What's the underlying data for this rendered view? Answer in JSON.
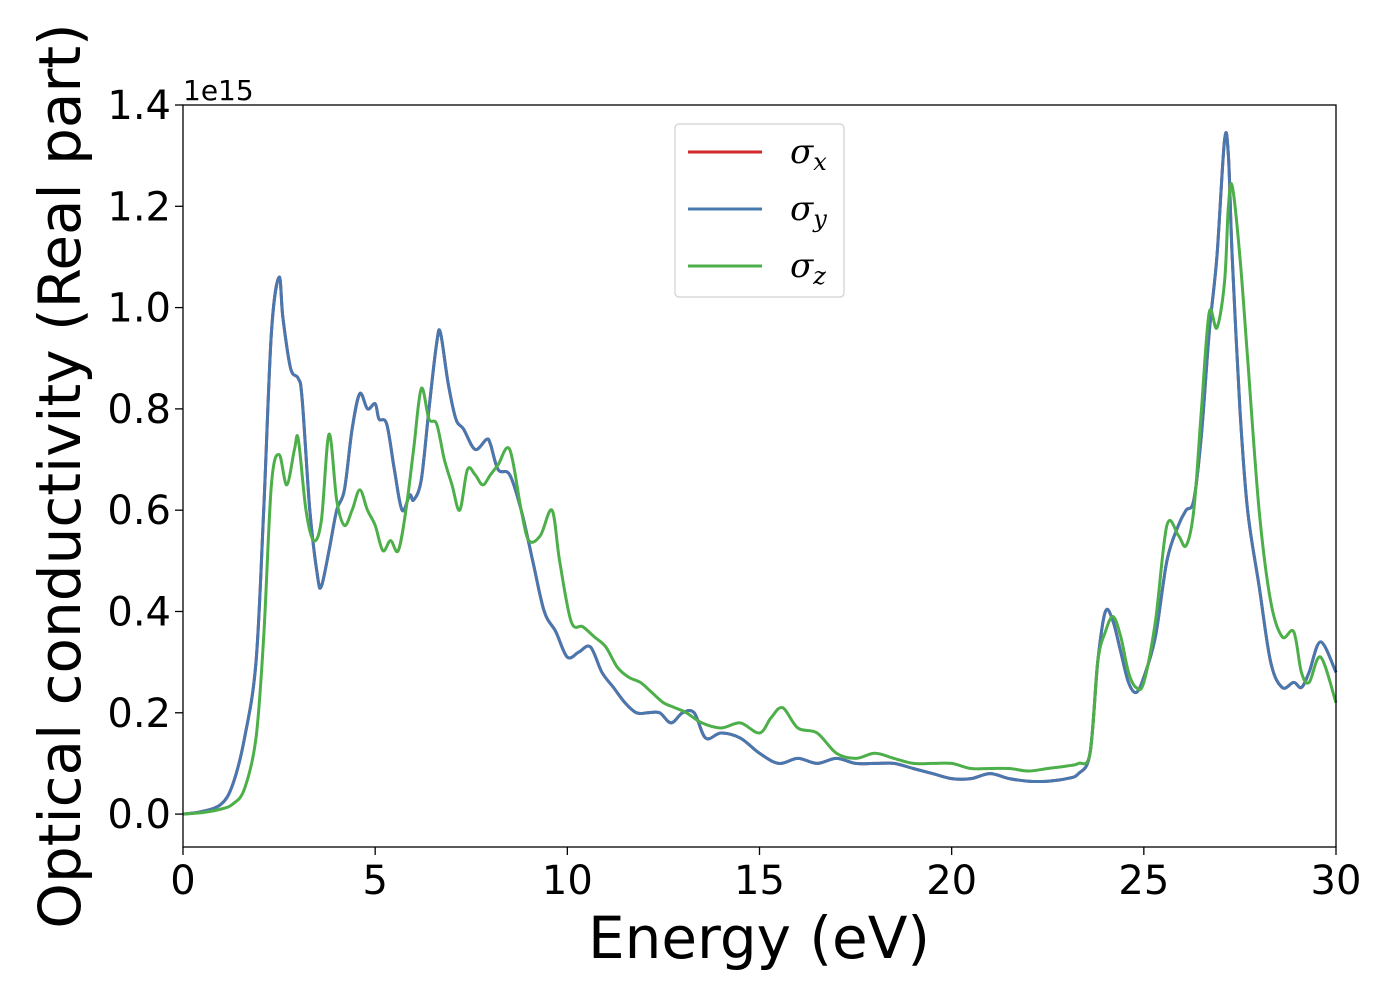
{
  "chart_data": {
    "type": "line",
    "xlabel": "Energy (eV)",
    "ylabel": "Optical conductivity (Real part)",
    "y_offset_text": "1e15",
    "xlim": [
      0,
      30
    ],
    "ylim": [
      -0.065,
      1.4
    ],
    "x_ticks": [
      0,
      5,
      10,
      15,
      20,
      25,
      30
    ],
    "x_tick_labels": [
      "0",
      "5",
      "10",
      "15",
      "20",
      "25",
      "30"
    ],
    "y_ticks": [
      0.0,
      0.2,
      0.4,
      0.6,
      0.8,
      1.0,
      1.2,
      1.4
    ],
    "y_tick_labels": [
      "0.0",
      "0.2",
      "0.4",
      "0.6",
      "0.8",
      "1.0",
      "1.2",
      "1.4"
    ],
    "grid": false,
    "legend_position": "upper-center",
    "series": [
      {
        "name": "σx",
        "symbol": "σ",
        "subscript": "x",
        "color": "#d62728",
        "x": [
          0,
          0.5,
          1,
          1.3,
          1.6,
          1.9,
          2.1,
          2.3,
          2.5,
          2.6,
          2.8,
          3.0,
          3.1,
          3.3,
          3.5,
          3.6,
          3.8,
          4.0,
          4.2,
          4.4,
          4.6,
          4.8,
          5.0,
          5.1,
          5.3,
          5.5,
          5.7,
          5.9,
          6.0,
          6.2,
          6.4,
          6.6,
          6.7,
          6.9,
          7.1,
          7.3,
          7.6,
          7.9,
          8.0,
          8.2,
          8.5,
          8.8,
          9.1,
          9.4,
          9.7,
          10.0,
          10.3,
          10.6,
          10.9,
          11.2,
          11.5,
          11.8,
          12.1,
          12.4,
          12.7,
          13.0,
          13.3,
          13.6,
          14.0,
          14.5,
          15.0,
          15.5,
          16.0,
          16.5,
          17.0,
          17.5,
          18.0,
          18.5,
          19.0,
          19.5,
          20.0,
          20.5,
          21.0,
          21.5,
          22.0,
          22.5,
          23.0,
          23.3,
          23.6,
          23.8,
          24.0,
          24.2,
          24.4,
          24.6,
          24.8,
          25.0,
          25.3,
          25.6,
          25.9,
          26.1,
          26.3,
          26.5,
          26.7,
          26.9,
          27.1,
          27.2,
          27.3,
          27.5,
          27.7,
          28.0,
          28.3,
          28.6,
          28.9,
          29.1,
          29.3,
          29.6,
          30.0
        ],
        "y": [
          0,
          0.005,
          0.02,
          0.06,
          0.15,
          0.3,
          0.6,
          0.95,
          1.06,
          0.98,
          0.88,
          0.86,
          0.82,
          0.6,
          0.47,
          0.45,
          0.52,
          0.6,
          0.64,
          0.76,
          0.83,
          0.8,
          0.81,
          0.78,
          0.77,
          0.68,
          0.6,
          0.63,
          0.62,
          0.66,
          0.8,
          0.93,
          0.95,
          0.85,
          0.78,
          0.76,
          0.72,
          0.74,
          0.73,
          0.68,
          0.67,
          0.6,
          0.5,
          0.4,
          0.36,
          0.31,
          0.32,
          0.33,
          0.28,
          0.25,
          0.22,
          0.2,
          0.2,
          0.2,
          0.18,
          0.2,
          0.2,
          0.15,
          0.16,
          0.15,
          0.12,
          0.1,
          0.11,
          0.1,
          0.11,
          0.1,
          0.1,
          0.1,
          0.09,
          0.08,
          0.07,
          0.07,
          0.08,
          0.07,
          0.065,
          0.065,
          0.07,
          0.08,
          0.12,
          0.3,
          0.4,
          0.38,
          0.32,
          0.26,
          0.24,
          0.27,
          0.35,
          0.5,
          0.57,
          0.6,
          0.62,
          0.75,
          0.95,
          1.1,
          1.33,
          1.3,
          1.1,
          0.8,
          0.6,
          0.45,
          0.3,
          0.25,
          0.26,
          0.25,
          0.28,
          0.34,
          0.28
        ]
      },
      {
        "name": "σy",
        "symbol": "σ",
        "subscript": "y",
        "color": "#4878b0",
        "x": [
          0,
          0.5,
          1,
          1.3,
          1.6,
          1.9,
          2.1,
          2.3,
          2.5,
          2.6,
          2.8,
          3.0,
          3.1,
          3.3,
          3.5,
          3.6,
          3.8,
          4.0,
          4.2,
          4.4,
          4.6,
          4.8,
          5.0,
          5.1,
          5.3,
          5.5,
          5.7,
          5.9,
          6.0,
          6.2,
          6.4,
          6.6,
          6.7,
          6.9,
          7.1,
          7.3,
          7.6,
          7.9,
          8.0,
          8.2,
          8.5,
          8.8,
          9.1,
          9.4,
          9.7,
          10.0,
          10.3,
          10.6,
          10.9,
          11.2,
          11.5,
          11.8,
          12.1,
          12.4,
          12.7,
          13.0,
          13.3,
          13.6,
          14.0,
          14.5,
          15.0,
          15.5,
          16.0,
          16.5,
          17.0,
          17.5,
          18.0,
          18.5,
          19.0,
          19.5,
          20.0,
          20.5,
          21.0,
          21.5,
          22.0,
          22.5,
          23.0,
          23.3,
          23.6,
          23.8,
          24.0,
          24.2,
          24.4,
          24.6,
          24.8,
          25.0,
          25.3,
          25.6,
          25.9,
          26.1,
          26.3,
          26.5,
          26.7,
          26.9,
          27.1,
          27.2,
          27.3,
          27.5,
          27.7,
          28.0,
          28.3,
          28.6,
          28.9,
          29.1,
          29.3,
          29.6,
          30.0
        ],
        "y": [
          0,
          0.005,
          0.02,
          0.06,
          0.15,
          0.3,
          0.6,
          0.95,
          1.06,
          0.98,
          0.88,
          0.86,
          0.82,
          0.6,
          0.47,
          0.45,
          0.52,
          0.6,
          0.64,
          0.76,
          0.83,
          0.8,
          0.81,
          0.78,
          0.77,
          0.68,
          0.6,
          0.63,
          0.62,
          0.66,
          0.8,
          0.93,
          0.95,
          0.85,
          0.78,
          0.76,
          0.72,
          0.74,
          0.73,
          0.68,
          0.67,
          0.6,
          0.5,
          0.4,
          0.36,
          0.31,
          0.32,
          0.33,
          0.28,
          0.25,
          0.22,
          0.2,
          0.2,
          0.2,
          0.18,
          0.2,
          0.2,
          0.15,
          0.16,
          0.15,
          0.12,
          0.1,
          0.11,
          0.1,
          0.11,
          0.1,
          0.1,
          0.1,
          0.09,
          0.08,
          0.07,
          0.07,
          0.08,
          0.07,
          0.065,
          0.065,
          0.07,
          0.08,
          0.12,
          0.3,
          0.4,
          0.38,
          0.32,
          0.26,
          0.24,
          0.27,
          0.35,
          0.5,
          0.57,
          0.6,
          0.62,
          0.75,
          0.95,
          1.1,
          1.33,
          1.3,
          1.1,
          0.8,
          0.6,
          0.45,
          0.3,
          0.25,
          0.26,
          0.25,
          0.28,
          0.34,
          0.28
        ]
      },
      {
        "name": "σz",
        "symbol": "σ",
        "subscript": "z",
        "color": "#4daf4a",
        "x": [
          0,
          0.5,
          1,
          1.3,
          1.6,
          1.9,
          2.1,
          2.3,
          2.5,
          2.7,
          2.9,
          3.0,
          3.2,
          3.4,
          3.6,
          3.8,
          4.0,
          4.2,
          4.4,
          4.6,
          4.8,
          5.0,
          5.2,
          5.4,
          5.6,
          5.8,
          6.0,
          6.2,
          6.4,
          6.6,
          6.8,
          7.0,
          7.2,
          7.4,
          7.6,
          7.8,
          8.0,
          8.2,
          8.5,
          8.8,
          9.0,
          9.3,
          9.6,
          9.8,
          10.1,
          10.4,
          10.7,
          11.0,
          11.3,
          11.6,
          11.9,
          12.2,
          12.5,
          12.8,
          13.1,
          13.5,
          14.0,
          14.5,
          15.0,
          15.3,
          15.6,
          16.0,
          16.5,
          17.0,
          17.5,
          18.0,
          18.5,
          19.0,
          19.5,
          20.0,
          20.5,
          21.0,
          21.5,
          22.0,
          22.5,
          23.0,
          23.3,
          23.6,
          23.8,
          24.0,
          24.2,
          24.4,
          24.6,
          24.8,
          25.0,
          25.3,
          25.6,
          25.9,
          26.1,
          26.3,
          26.5,
          26.7,
          26.9,
          27.1,
          27.2,
          27.3,
          27.5,
          27.7,
          28.0,
          28.3,
          28.6,
          28.9,
          29.1,
          29.3,
          29.6,
          30.0
        ],
        "y": [
          0,
          0.003,
          0.01,
          0.02,
          0.05,
          0.15,
          0.35,
          0.65,
          0.71,
          0.65,
          0.72,
          0.74,
          0.6,
          0.54,
          0.58,
          0.75,
          0.62,
          0.57,
          0.6,
          0.64,
          0.6,
          0.57,
          0.52,
          0.54,
          0.52,
          0.6,
          0.72,
          0.84,
          0.78,
          0.77,
          0.7,
          0.65,
          0.6,
          0.68,
          0.67,
          0.65,
          0.67,
          0.69,
          0.72,
          0.6,
          0.54,
          0.55,
          0.6,
          0.5,
          0.38,
          0.37,
          0.35,
          0.33,
          0.29,
          0.27,
          0.26,
          0.24,
          0.22,
          0.21,
          0.2,
          0.18,
          0.17,
          0.18,
          0.16,
          0.19,
          0.21,
          0.17,
          0.16,
          0.12,
          0.11,
          0.12,
          0.11,
          0.1,
          0.1,
          0.1,
          0.09,
          0.09,
          0.09,
          0.085,
          0.09,
          0.095,
          0.1,
          0.12,
          0.3,
          0.36,
          0.39,
          0.35,
          0.28,
          0.25,
          0.26,
          0.38,
          0.57,
          0.55,
          0.53,
          0.6,
          0.8,
          0.99,
          0.96,
          1.05,
          1.2,
          1.24,
          1.1,
          0.9,
          0.6,
          0.42,
          0.35,
          0.36,
          0.28,
          0.26,
          0.31,
          0.22
        ]
      }
    ]
  }
}
